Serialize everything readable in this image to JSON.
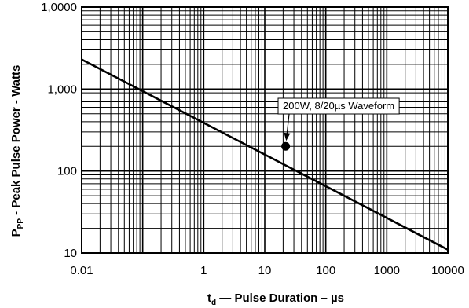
{
  "chart_data": {
    "type": "line",
    "x_scale": "log",
    "y_scale": "log",
    "xlim": [
      0.01,
      10000
    ],
    "ylim": [
      10,
      10000
    ],
    "grid": true,
    "x_ticks": [
      {
        "value": 0.01,
        "label": "0.01"
      },
      {
        "value": 1,
        "label": "1"
      },
      {
        "value": 10,
        "label": "10"
      },
      {
        "value": 100,
        "label": "100"
      },
      {
        "value": 1000,
        "label": "1000"
      },
      {
        "value": 10000,
        "label": "10000"
      }
    ],
    "y_ticks": [
      {
        "value": 10,
        "label": "10"
      },
      {
        "value": 100,
        "label": "100"
      },
      {
        "value": 1000,
        "label": "1,000"
      },
      {
        "value": 10000,
        "label": "1,0000"
      }
    ],
    "xlabel_symbol": "t",
    "xlabel_subscript": "d",
    "xlabel_text": " — Pulse Duration – µs",
    "ylabel_symbol": "P",
    "ylabel_subscript": "PP",
    "ylabel_text": " - Peak Pulse Power - Watts",
    "series": [
      {
        "x": [
          0.01,
          10000
        ],
        "y": [
          2300,
          11
        ]
      }
    ],
    "annotation": {
      "text": "200W, 8/20µs Waveform",
      "point": {
        "x": 22,
        "y": 200
      }
    },
    "colors": {
      "line": "#000000",
      "grid": "#000000",
      "background": "#ffffff"
    }
  }
}
